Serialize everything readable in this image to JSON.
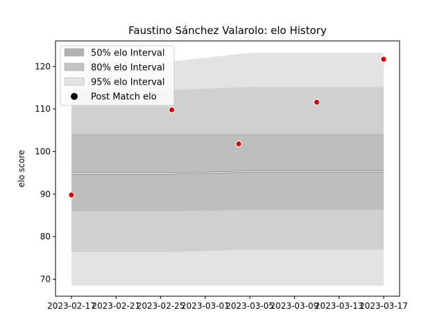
{
  "chart_data": {
    "type": "line",
    "title": "Faustino Sánchez Valarolo: elo History",
    "xlabel": "",
    "ylabel": "elo score",
    "x_ticks": [
      "2023-02-17",
      "2023-02-21",
      "2023-02-25",
      "2023-03-01",
      "2023-03-05",
      "2023-03-09",
      "2023-03-13",
      "2023-03-17"
    ],
    "y_ticks": [
      70,
      80,
      90,
      100,
      110,
      120
    ],
    "xlim": [
      "2023-02-16",
      "2023-03-17"
    ],
    "ylim": [
      66,
      126
    ],
    "legend_position": "top-left",
    "band_dates": [
      "2023-02-17",
      "2023-02-26",
      "2023-03-05",
      "2023-03-17"
    ],
    "mean_line": [
      94.8,
      94.8,
      95.3,
      95.3
    ],
    "band_50": {
      "lower": [
        86.0,
        86.0,
        86.3,
        86.3
      ],
      "upper": [
        104.2,
        104.2,
        104.2,
        104.2
      ]
    },
    "band_80": {
      "lower": [
        76.4,
        76.4,
        76.9,
        76.9
      ],
      "upper": [
        114.5,
        114.5,
        115.2,
        115.2
      ]
    },
    "band_95": {
      "lower": [
        68.5,
        68.5,
        68.5,
        68.5
      ],
      "upper": [
        121.2,
        121.2,
        123.2,
        123.2
      ]
    },
    "points": [
      {
        "x": "2023-02-17",
        "y": 89.8
      },
      {
        "x": "2023-02-26",
        "y": 109.8
      },
      {
        "x": "2023-03-04",
        "y": 101.8
      },
      {
        "x": "2023-03-11",
        "y": 111.6
      },
      {
        "x": "2023-03-17",
        "y": 121.7
      }
    ],
    "legend": [
      {
        "label": "50% elo Interval",
        "kind": "band",
        "color": "#b0b0b0"
      },
      {
        "label": "80% elo Interval",
        "kind": "band",
        "color": "#c4c4c4"
      },
      {
        "label": "95% elo Interval",
        "kind": "band",
        "color": "#e3e3e3"
      },
      {
        "label": "Post Match elo",
        "kind": "marker",
        "color": "#000000"
      }
    ],
    "colors": {
      "band_95": "#e3e3e3",
      "band_80": "#d0d0d0",
      "band_50": "#bdbdbd",
      "mean_line": "#ffffff",
      "point_fill": "#dd0000",
      "point_edge": "#ffffff"
    }
  }
}
